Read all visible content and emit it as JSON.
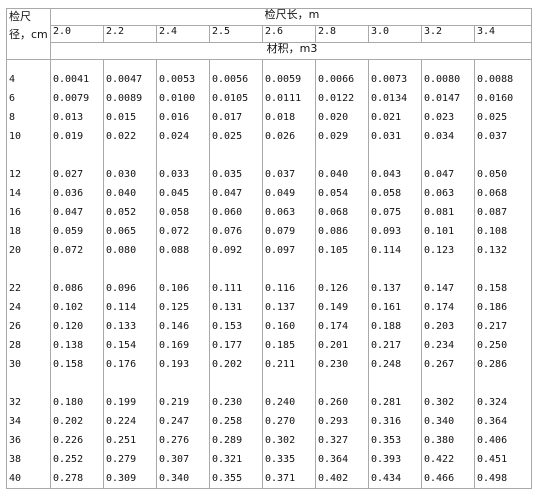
{
  "corner": {
    "line1": "检尺",
    "line2": "径，cm"
  },
  "length_header": "检尺长，m",
  "volume_header": "材积，m3",
  "lengths": [
    "2.0",
    "2.2",
    "2.4",
    "2.5",
    "2.6",
    "2.8",
    "3.0",
    "3.2",
    "3.4"
  ],
  "groups": [
    {
      "diameters": [
        "4",
        "6",
        "8",
        "10"
      ],
      "rows": [
        [
          "0.0041",
          "0.0047",
          "0.0053",
          "0.0056",
          "0.0059",
          "0.0066",
          "0.0073",
          "0.0080",
          "0.0088"
        ],
        [
          "0.0079",
          "0.0089",
          "0.0100",
          "0.0105",
          "0.0111",
          "0.0122",
          "0.0134",
          "0.0147",
          "0.0160"
        ],
        [
          "0.013",
          "0.015",
          "0.016",
          "0.017",
          "0.018",
          "0.020",
          "0.021",
          "0.023",
          "0.025"
        ],
        [
          "0.019",
          "0.022",
          "0.024",
          "0.025",
          "0.026",
          "0.029",
          "0.031",
          "0.034",
          "0.037"
        ]
      ]
    },
    {
      "diameters": [
        "12",
        "14",
        "16",
        "18",
        "20"
      ],
      "rows": [
        [
          "0.027",
          "0.030",
          "0.033",
          "0.035",
          "0.037",
          "0.040",
          "0.043",
          "0.047",
          "0.050"
        ],
        [
          "0.036",
          "0.040",
          "0.045",
          "0.047",
          "0.049",
          "0.054",
          "0.058",
          "0.063",
          "0.068"
        ],
        [
          "0.047",
          "0.052",
          "0.058",
          "0.060",
          "0.063",
          "0.068",
          "0.075",
          "0.081",
          "0.087"
        ],
        [
          "0.059",
          "0.065",
          "0.072",
          "0.076",
          "0.079",
          "0.086",
          "0.093",
          "0.101",
          "0.108"
        ],
        [
          "0.072",
          "0.080",
          "0.088",
          "0.092",
          "0.097",
          "0.105",
          "0.114",
          "0.123",
          "0.132"
        ]
      ]
    },
    {
      "diameters": [
        "22",
        "24",
        "26",
        "28",
        "30"
      ],
      "rows": [
        [
          "0.086",
          "0.096",
          "0.106",
          "0.111",
          "0.116",
          "0.126",
          "0.137",
          "0.147",
          "0.158"
        ],
        [
          "0.102",
          "0.114",
          "0.125",
          "0.131",
          "0.137",
          "0.149",
          "0.161",
          "0.174",
          "0.186"
        ],
        [
          "0.120",
          "0.133",
          "0.146",
          "0.153",
          "0.160",
          "0.174",
          "0.188",
          "0.203",
          "0.217"
        ],
        [
          "0.138",
          "0.154",
          "0.169",
          "0.177",
          "0.185",
          "0.201",
          "0.217",
          "0.234",
          "0.250"
        ],
        [
          "0.158",
          "0.176",
          "0.193",
          "0.202",
          "0.211",
          "0.230",
          "0.248",
          "0.267",
          "0.286"
        ]
      ]
    },
    {
      "diameters": [
        "32",
        "34",
        "36",
        "38",
        "40"
      ],
      "rows": [
        [
          "0.180",
          "0.199",
          "0.219",
          "0.230",
          "0.240",
          "0.260",
          "0.281",
          "0.302",
          "0.324"
        ],
        [
          "0.202",
          "0.224",
          "0.247",
          "0.258",
          "0.270",
          "0.293",
          "0.316",
          "0.340",
          "0.364"
        ],
        [
          "0.226",
          "0.251",
          "0.276",
          "0.289",
          "0.302",
          "0.327",
          "0.353",
          "0.380",
          "0.406"
        ],
        [
          "0.252",
          "0.279",
          "0.307",
          "0.321",
          "0.335",
          "0.364",
          "0.393",
          "0.422",
          "0.451"
        ],
        [
          "0.278",
          "0.309",
          "0.340",
          "0.355",
          "0.371",
          "0.402",
          "0.434",
          "0.466",
          "0.498"
        ]
      ]
    }
  ]
}
